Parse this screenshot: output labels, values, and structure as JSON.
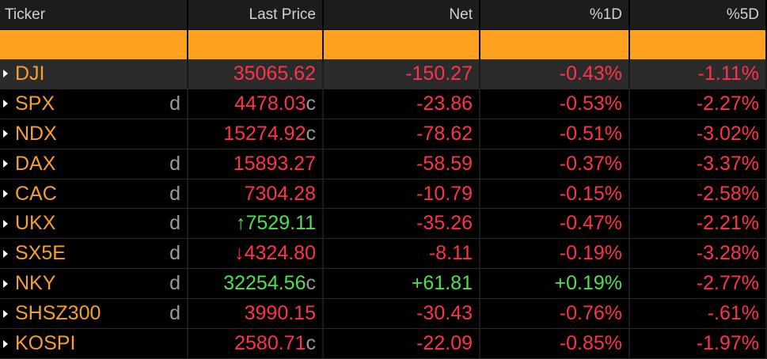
{
  "header": {
    "columns": [
      "Ticker",
      "Last Price",
      "Net",
      "%1D",
      "%5D"
    ]
  },
  "table": {
    "rows": [
      {
        "ticker": "DJI",
        "price": "35065.62",
        "price_color": "#ff3347",
        "net": "-150.27",
        "d1": "-0.43%",
        "d5": "-1.11%",
        "selected": true
      },
      {
        "ticker": "SPX",
        "flag": "d",
        "price": "4478.03",
        "suffix": "c",
        "price_color": "#ff3347",
        "net": "-23.86",
        "d1": "-0.53%",
        "d5": "-2.27%"
      },
      {
        "ticker": "NDX",
        "price": "15274.92",
        "suffix": "c",
        "price_color": "#ff3347",
        "net": "-78.62",
        "d1": "-0.51%",
        "d5": "-3.02%"
      },
      {
        "ticker": "DAX",
        "flag": "d",
        "price": "15893.27",
        "price_color": "#ff3347",
        "net": "-58.59",
        "d1": "-0.37%",
        "d5": "-3.37%"
      },
      {
        "ticker": "CAC",
        "flag": "d",
        "price": "7304.28",
        "price_color": "#ff3347",
        "net": "-10.79",
        "d1": "-0.15%",
        "d5": "-2.58%"
      },
      {
        "ticker": "UKX",
        "flag": "d",
        "arrow": "↑",
        "price": "7529.11",
        "price_color": "#4ee04e",
        "net": "-35.26",
        "d1": "-0.47%",
        "d5": "-2.21%"
      },
      {
        "ticker": "SX5E",
        "flag": "d",
        "arrow": "↓",
        "price": "4324.80",
        "price_color": "#ff3347",
        "net": "-8.11",
        "d1": "-0.19%",
        "d5": "-3.28%"
      },
      {
        "ticker": "NKY",
        "flag": "d",
        "price": "32254.56",
        "suffix": "c",
        "price_color": "#4ee04e",
        "net": "+61.81",
        "d1": "+0.19%",
        "d5": "-2.77%"
      },
      {
        "ticker": "SHSZ300",
        "flag": "d",
        "price": "3990.15",
        "price_color": "#ff3347",
        "net": "-30.43",
        "d1": "-0.76%",
        "d5": "-.61%"
      },
      {
        "ticker": "KOSPI",
        "price": "2580.71",
        "suffix": "c",
        "price_color": "#ff3347",
        "net": "-22.09",
        "d1": "-0.85%",
        "d5": "-1.97%"
      }
    ]
  },
  "colors": {
    "up": "#4ee04e",
    "down": "#ff3347",
    "ticker": "#f5a02a",
    "accent": "#ffa01e"
  }
}
